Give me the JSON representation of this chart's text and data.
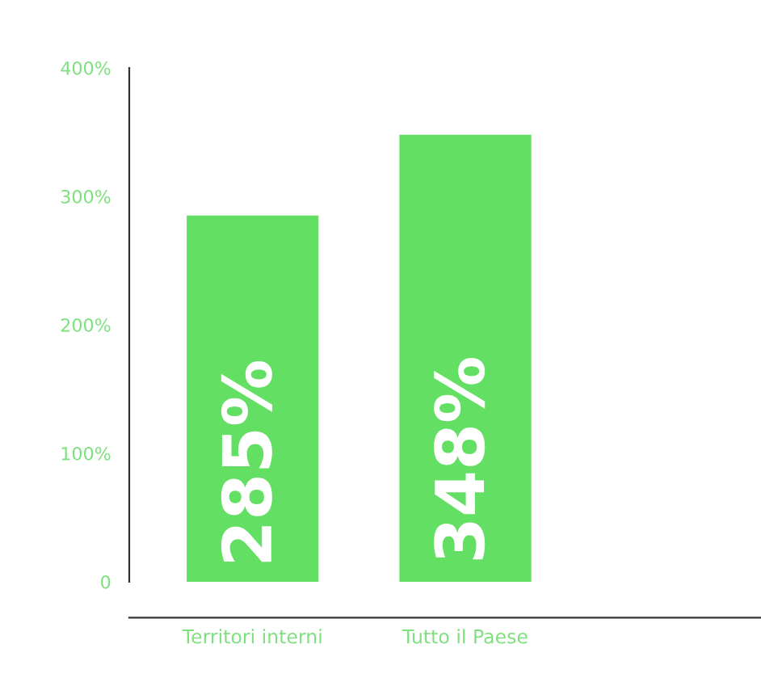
{
  "chart_data": {
    "type": "bar",
    "categories": [
      "Territori interni",
      "Tutto il Paese"
    ],
    "values": [
      285,
      348
    ],
    "color": "#63e063",
    "value_labels": [
      "285%",
      "348%"
    ],
    "ylim": [
      0,
      400
    ],
    "yticks": [
      0,
      {
        "value": 100,
        "label": "100%"
      },
      {
        "value": 200,
        "label": "200%"
      },
      {
        "value": 300,
        "label": "300%"
      },
      {
        "value": 400,
        "label": "400%"
      }
    ],
    "grid": false,
    "legend": false
  }
}
